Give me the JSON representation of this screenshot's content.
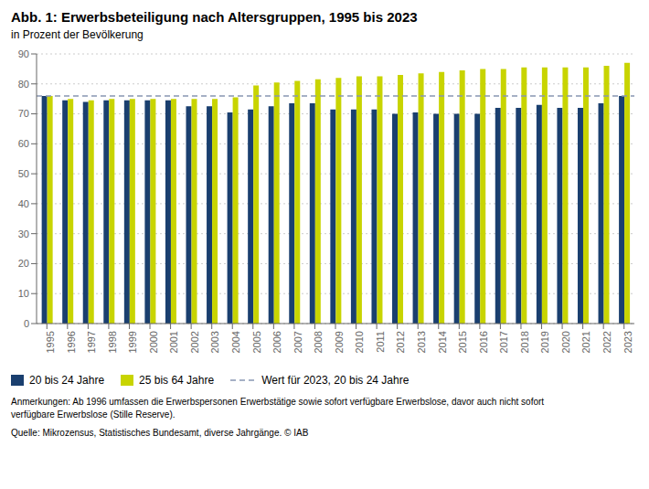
{
  "chart_data": {
    "type": "bar",
    "title": "Abb. 1: Erwerbsbeteiligung nach Altersgruppen, 1995 bis 2023",
    "subtitle": "in Prozent der Bevölkerung",
    "categories": [
      "1995",
      "1996",
      "1997",
      "1998",
      "1999",
      "2000",
      "2001",
      "2002",
      "2003",
      "2004",
      "2005",
      "2006",
      "2007",
      "2008",
      "2009",
      "2010",
      "2011",
      "2012",
      "2013",
      "2014",
      "2015",
      "2016",
      "2017",
      "2018",
      "2019",
      "2020",
      "2021",
      "2022",
      "2023"
    ],
    "series": [
      {
        "name": "20 bis 24 Jahre",
        "color": "#1a3f6f",
        "values": [
          76.0,
          74.5,
          74.0,
          74.5,
          74.5,
          74.5,
          74.5,
          72.5,
          72.5,
          70.5,
          71.5,
          72.5,
          73.5,
          73.5,
          71.5,
          71.5,
          71.5,
          70.0,
          70.5,
          70.0,
          70.0,
          70.0,
          72.0,
          72.0,
          73.0,
          72.0,
          72.0,
          73.5,
          76.0
        ]
      },
      {
        "name": "25 bis 64 Jahre",
        "color": "#c8d400",
        "values": [
          76.0,
          75.0,
          74.5,
          75.0,
          75.0,
          75.0,
          75.0,
          75.0,
          75.0,
          75.5,
          79.5,
          80.5,
          81.0,
          81.5,
          82.0,
          82.5,
          82.5,
          83.0,
          83.5,
          84.0,
          84.5,
          85.0,
          85.0,
          85.5,
          85.5,
          85.5,
          85.5,
          86.0,
          87.0
        ]
      }
    ],
    "reference_lines": [
      {
        "value": 76.0,
        "name": "Wert für 2023, 20 bis 24 Jahre",
        "color": "#8896b3",
        "line_style": "dashed"
      }
    ],
    "ylim": [
      0,
      90
    ],
    "yticks": [
      0,
      10,
      20,
      30,
      40,
      50,
      60,
      70,
      80,
      90
    ],
    "grid": true,
    "legend": "bottom",
    "annotations": [
      "Anmerkungen: Ab 1996 umfassen die Erwerbspersonen Erwerbstätige sowie sofort verfügbare Erwerbslose, davor auch nicht sofort",
      "verfügbare Erwerbslose (Stille Reserve).",
      "Quelle: Mikrozensus, Statistisches Bundesamt, diverse Jahrgänge.  © IAB"
    ]
  }
}
